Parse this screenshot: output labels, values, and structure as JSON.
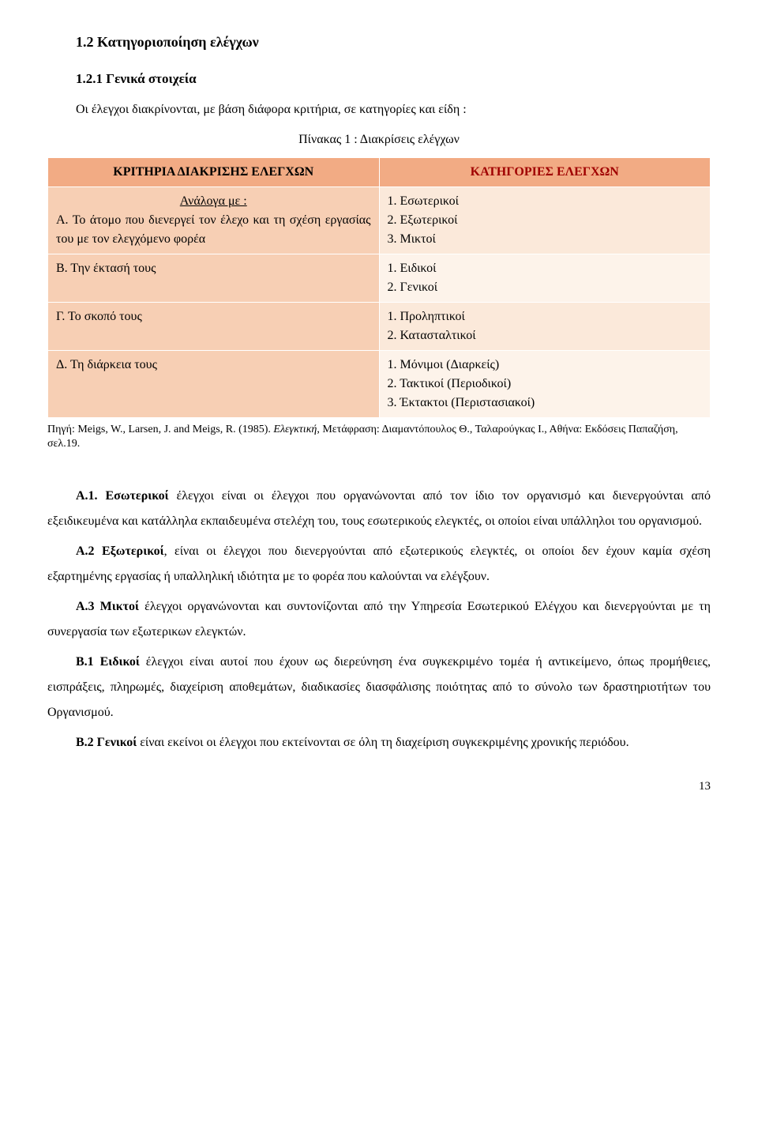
{
  "headings": {
    "section": "1.2 Κατηγοριοποίηση ελέγχων",
    "subsection": "1.2.1 Γενικά στοιχεία"
  },
  "intro": "Οι έλεγχοι διακρίνονται, με βάση διάφορα κριτήρια, σε κατηγορίες και είδη :",
  "table_caption": "Πίνακας 1 : Διακρίσεις ελέγχων",
  "table": {
    "header_left": "ΚΡΙΤΗΡΙΑ ΔΙΑΚΡΙΣΗΣ ΕΛΕΓΧΩΝ",
    "header_right": "ΚΑΤΗΓΟΡΙΕΣ ΕΛΕΓΧΩΝ",
    "rows": {
      "a": {
        "left_lead": "Ανάλογα με :",
        "left_body": "Α. Το άτομο που διενεργεί τον έλεχο και τη σχέση εργασίας του με τον ελεγχόμενο φορέα",
        "right": [
          "1. Εσωτερικοί",
          "2. Εξωτερικοί",
          "3. Μικτοί"
        ]
      },
      "b": {
        "left": "Β. Την έκτασή τους",
        "right": [
          "1. Ειδικοί",
          "2. Γενικοί"
        ]
      },
      "c": {
        "left": "Γ. Το σκοπό τους",
        "right": [
          "1. Προληπτικοί",
          "2. Κατασταλτικοί"
        ]
      },
      "d": {
        "left": "Δ. Τη διάρκεια τους",
        "right": [
          "1. Μόνιμοι (Διαρκείς)",
          "2. Τακτικοί (Περιοδικοί)",
          "3. Έκτακτοι (Περιστασιακοί)"
        ]
      }
    }
  },
  "citation": {
    "prefix": "Πηγή: Meigs, W., Larsen, J. and Meigs, R. (1985). ",
    "italic": "Ελεγκτική",
    "suffix": ", Μετάφραση: Διαμαντόπουλος Θ., Ταλαρούγκας Ι., Αθήνα: Εκδόσεις Παπαζήση,  σελ.19."
  },
  "paragraphs": {
    "a1_lead": "Α.1. Εσωτερικοί",
    "a1_rest": " έλεγχοι είναι οι έλεγχοι που οργανώνονται από τον ίδιο τον οργανισμό και διενεργούνται από εξειδικευμένα και κατάλληλα εκπαιδευμένα στελέχη του, τους εσωτερικούς ελεγκτές, οι οποίοι είναι υπάλληλοι του οργανισμού.",
    "a2_lead": "Α.2 Εξωτερικοί",
    "a2_rest": ", είναι οι έλεγχοι που διενεργούνται από εξωτερικούς ελεγκτές, οι οποίοι δεν έχουν καμία σχέση εξαρτημένης εργασίας ή υπαλληλική ιδιότητα με το φορέα που καλούνται να ελέγξουν.",
    "a3_lead": "Α.3 Μικτοί",
    "a3_rest": " έλεγχοι οργανώνονται και συντονίζονται από την Υπηρεσία Εσωτερικού Ελέγχου και διενεργούνται με τη συνεργασία των εξωτερικων ελεγκτών.",
    "b1_lead": "Β.1 Ειδικοί",
    "b1_rest": " έλεγχοι είναι αυτοί που έχουν ως διερεύνηση ένα συγκεκριμένο τομέα ή αντικείμενο, όπως προμήθειες, εισπράξεις, πληρωμές, διαχείριση αποθεμάτων, διαδικασίες διασφάλισης ποιότητας από το σύνολο των δραστηριοτήτων του Οργανισμού.",
    "b2_lead": "Β.2 Γενικοί",
    "b2_rest": " είναι εκείνοι οι έλεγχοι που εκτείνονται σε όλη τη διαχείριση συγκεκριμένης χρονικής περιόδου."
  },
  "page_number": "13"
}
